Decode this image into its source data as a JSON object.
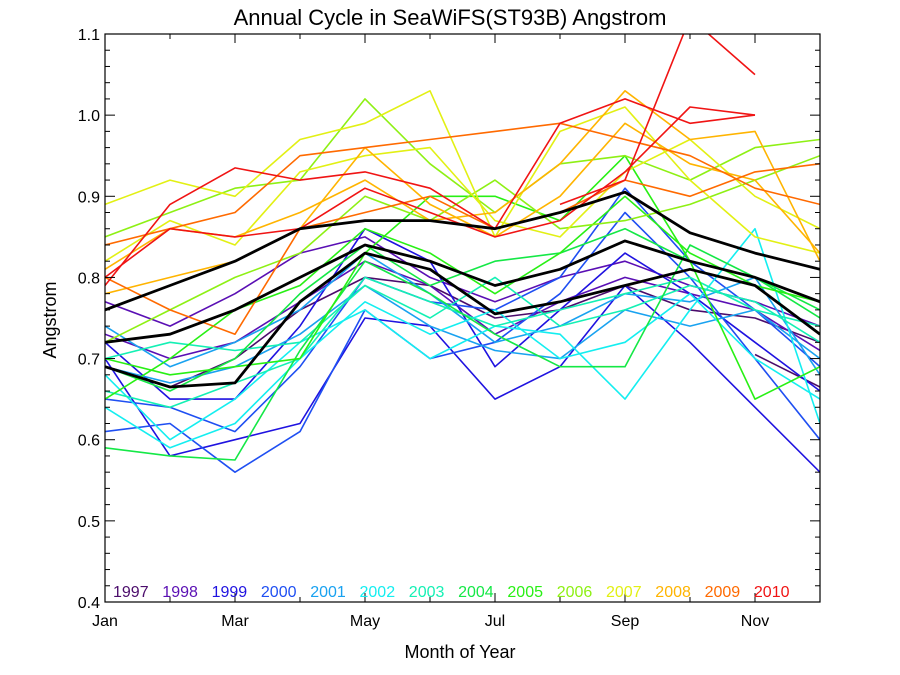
{
  "chart_data": {
    "type": "line",
    "title": "Annual Cycle in SeaWiFS(ST93B) Angstrom",
    "xlabel": "Month of Year",
    "ylabel": "Angstrom",
    "xlim": [
      1,
      12
    ],
    "ylim": [
      0.4,
      1.1
    ],
    "x_ticks": [
      {
        "x": 1,
        "label": "Jan"
      },
      {
        "x": 3,
        "label": "Mar"
      },
      {
        "x": 5,
        "label": "May"
      },
      {
        "x": 7,
        "label": "Jul"
      },
      {
        "x": 9,
        "label": "Sep"
      },
      {
        "x": 11,
        "label": "Nov"
      }
    ],
    "y_ticks": [
      {
        "y": 0.4,
        "label": "0.4"
      },
      {
        "y": 0.5,
        "label": "0.5"
      },
      {
        "y": 0.6,
        "label": "0.6"
      },
      {
        "y": 0.7,
        "label": "0.7"
      },
      {
        "y": 0.8,
        "label": "0.8"
      },
      {
        "y": 0.9,
        "label": "0.9"
      },
      {
        "y": 1.0,
        "label": "1.0"
      },
      {
        "y": 1.1,
        "label": "1.1"
      }
    ],
    "grid": false,
    "legend_position": "bottom",
    "legend": [
      {
        "label": "1997",
        "color": "#4b0c6b"
      },
      {
        "label": "1998",
        "color": "#5a0fb4"
      },
      {
        "label": "1999",
        "color": "#1f12e0"
      },
      {
        "label": "2000",
        "color": "#1f4ff2"
      },
      {
        "label": "2001",
        "color": "#19a2f0"
      },
      {
        "label": "2002",
        "color": "#14eef0"
      },
      {
        "label": "2003",
        "color": "#14f0b4"
      },
      {
        "label": "2004",
        "color": "#14e846"
      },
      {
        "label": "2005",
        "color": "#28f014"
      },
      {
        "label": "2006",
        "color": "#8ef014"
      },
      {
        "label": "2007",
        "color": "#e2f014"
      },
      {
        "label": "2008",
        "color": "#ffb400"
      },
      {
        "label": "2009",
        "color": "#ff6a00"
      },
      {
        "label": "2010",
        "color": "#f01414"
      }
    ],
    "series": [
      {
        "color": "#4b0c6b",
        "x": [
          11,
          12
        ],
        "y": [
          0.705,
          0.665
        ]
      },
      {
        "color": "#4b0c6b",
        "x": [
          1,
          2,
          3,
          4,
          5,
          6,
          7,
          8,
          9,
          10,
          11,
          12
        ],
        "y": [
          0.69,
          0.665,
          0.7,
          0.76,
          0.8,
          0.79,
          0.75,
          0.76,
          0.79,
          0.76,
          0.75,
          0.72
        ]
      },
      {
        "color": "#5a0fb4",
        "x": [
          1,
          2,
          3,
          4,
          5,
          6,
          7,
          8,
          9,
          10,
          11,
          12
        ],
        "y": [
          0.77,
          0.74,
          0.78,
          0.83,
          0.85,
          0.8,
          0.77,
          0.8,
          0.82,
          0.79,
          0.77,
          0.74
        ]
      },
      {
        "color": "#5a0fb4",
        "x": [
          1,
          2,
          3,
          4,
          5,
          6,
          7,
          8,
          9,
          10,
          11,
          12
        ],
        "y": [
          0.73,
          0.7,
          0.72,
          0.77,
          0.82,
          0.79,
          0.73,
          0.77,
          0.8,
          0.78,
          0.76,
          0.71
        ]
      },
      {
        "color": "#1f12e0",
        "x": [
          1,
          2,
          3,
          4,
          5,
          6,
          7,
          8,
          9,
          10,
          11,
          12
        ],
        "y": [
          0.7,
          0.58,
          0.6,
          0.62,
          0.75,
          0.74,
          0.65,
          0.69,
          0.79,
          0.72,
          0.64,
          0.56
        ]
      },
      {
        "color": "#1f12e0",
        "x": [
          1,
          2,
          3,
          4,
          5,
          6,
          7,
          8,
          9,
          10,
          11,
          12
        ],
        "y": [
          0.72,
          0.65,
          0.65,
          0.74,
          0.86,
          0.82,
          0.69,
          0.76,
          0.83,
          0.78,
          0.72,
          0.66
        ]
      },
      {
        "color": "#1f4ff2",
        "x": [
          1,
          2,
          3,
          4,
          5,
          6,
          7,
          8,
          9,
          10,
          11,
          12
        ],
        "y": [
          0.61,
          0.62,
          0.56,
          0.61,
          0.76,
          0.7,
          0.72,
          0.78,
          0.88,
          0.8,
          0.7,
          0.6
        ]
      },
      {
        "color": "#1f4ff2",
        "x": [
          1,
          2,
          3,
          4,
          5,
          6,
          7,
          8,
          9,
          10,
          11,
          12
        ],
        "y": [
          0.65,
          0.64,
          0.61,
          0.69,
          0.8,
          0.77,
          0.76,
          0.8,
          0.91,
          0.82,
          0.76,
          0.69
        ]
      },
      {
        "color": "#19a2f0",
        "x": [
          1,
          2,
          3,
          4,
          5,
          6,
          7,
          8,
          9,
          10,
          11,
          12
        ],
        "y": [
          0.74,
          0.69,
          0.72,
          0.76,
          0.83,
          0.78,
          0.72,
          0.74,
          0.78,
          0.77,
          0.8,
          0.68
        ]
      },
      {
        "color": "#19a2f0",
        "x": [
          1,
          2,
          3,
          4,
          5,
          6,
          7,
          8,
          9,
          10,
          11,
          12
        ],
        "y": [
          0.69,
          0.67,
          0.69,
          0.73,
          0.79,
          0.74,
          0.71,
          0.7,
          0.76,
          0.74,
          0.76,
          0.7
        ]
      },
      {
        "color": "#14eef0",
        "x": [
          1,
          2,
          3,
          4,
          5,
          6,
          7,
          8,
          9,
          10,
          11,
          12
        ],
        "y": [
          0.68,
          0.6,
          0.65,
          0.72,
          0.76,
          0.7,
          0.74,
          0.73,
          0.65,
          0.76,
          0.86,
          0.62
        ]
      },
      {
        "color": "#14eef0",
        "x": [
          1,
          2,
          3,
          4,
          5,
          6,
          7,
          8,
          9,
          10,
          11,
          12
        ],
        "y": [
          0.64,
          0.59,
          0.62,
          0.7,
          0.77,
          0.73,
          0.76,
          0.7,
          0.72,
          0.78,
          0.7,
          0.65
        ]
      },
      {
        "color": "#14f0b4",
        "x": [
          1,
          2,
          3,
          4,
          5,
          6,
          7,
          8,
          9,
          10,
          11,
          12
        ],
        "y": [
          0.7,
          0.72,
          0.71,
          0.72,
          0.79,
          0.75,
          0.8,
          0.74,
          0.76,
          0.79,
          0.77,
          0.72
        ]
      },
      {
        "color": "#14f0b4",
        "x": [
          1,
          2,
          3,
          4,
          5,
          6,
          7,
          8,
          9,
          10,
          11,
          12
        ],
        "y": [
          0.66,
          0.64,
          0.67,
          0.7,
          0.8,
          0.77,
          0.74,
          0.76,
          0.78,
          0.8,
          0.76,
          0.74
        ]
      },
      {
        "color": "#14e846",
        "x": [
          1,
          2,
          3,
          4,
          5,
          6,
          7,
          8,
          9,
          10,
          11,
          12
        ],
        "y": [
          0.59,
          0.58,
          0.575,
          0.71,
          0.82,
          0.78,
          0.73,
          0.69,
          0.69,
          0.84,
          0.8,
          0.76
        ]
      },
      {
        "color": "#14e846",
        "x": [
          1,
          2,
          3,
          4,
          5,
          6,
          7,
          8,
          9,
          10,
          11,
          12
        ],
        "y": [
          0.69,
          0.66,
          0.7,
          0.78,
          0.84,
          0.79,
          0.82,
          0.83,
          0.86,
          0.82,
          0.8,
          0.75
        ]
      },
      {
        "color": "#28f014",
        "x": [
          1,
          2,
          3,
          4,
          5,
          6,
          7,
          8,
          9,
          10,
          11,
          12
        ],
        "y": [
          0.7,
          0.68,
          0.69,
          0.7,
          0.83,
          0.9,
          0.9,
          0.87,
          0.95,
          0.82,
          0.65,
          0.69
        ]
      },
      {
        "color": "#28f014",
        "x": [
          1,
          2,
          3,
          4,
          5,
          6,
          7,
          8,
          9,
          10,
          11,
          12
        ],
        "y": [
          0.65,
          0.7,
          0.76,
          0.79,
          0.86,
          0.83,
          0.78,
          0.83,
          0.9,
          0.83,
          0.79,
          0.77
        ]
      },
      {
        "color": "#8ef014",
        "x": [
          1,
          2,
          3,
          4,
          5,
          6,
          7,
          8,
          9,
          10,
          11,
          12
        ],
        "y": [
          0.85,
          0.88,
          0.91,
          0.92,
          1.02,
          0.94,
          0.88,
          0.94,
          0.95,
          0.92,
          0.96,
          0.97
        ]
      },
      {
        "color": "#8ef014",
        "x": [
          1,
          2,
          3,
          4,
          5,
          6,
          7,
          8,
          9,
          10,
          11,
          12
        ],
        "y": [
          0.72,
          0.76,
          0.8,
          0.83,
          0.9,
          0.87,
          0.92,
          0.86,
          0.87,
          0.89,
          0.92,
          0.95
        ]
      },
      {
        "color": "#e2f014",
        "x": [
          1,
          2,
          3,
          4,
          5,
          6,
          7,
          8,
          9,
          10,
          11,
          12
        ],
        "y": [
          0.89,
          0.92,
          0.9,
          0.97,
          0.99,
          1.03,
          0.85,
          0.98,
          1.01,
          0.92,
          0.85,
          0.83
        ]
      },
      {
        "color": "#e2f014",
        "x": [
          1,
          2,
          3,
          4,
          5,
          6,
          7,
          8,
          9,
          10,
          11,
          12
        ],
        "y": [
          0.82,
          0.87,
          0.84,
          0.93,
          0.95,
          0.96,
          0.87,
          0.85,
          0.93,
          0.97,
          0.9,
          0.86
        ]
      },
      {
        "color": "#ffb400",
        "x": [
          1,
          2,
          3,
          4,
          5,
          6,
          7,
          8,
          9,
          10,
          11,
          12
        ],
        "y": [
          0.81,
          0.86,
          0.85,
          0.88,
          0.92,
          0.87,
          0.88,
          0.94,
          1.03,
          0.97,
          0.98,
          0.82
        ]
      },
      {
        "color": "#ffb400",
        "x": [
          1,
          2,
          3,
          4,
          5,
          6,
          7,
          8,
          9,
          10,
          11,
          12
        ],
        "y": [
          0.78,
          0.8,
          0.82,
          0.86,
          0.96,
          0.89,
          0.85,
          0.9,
          0.99,
          0.94,
          0.92,
          0.83
        ]
      },
      {
        "color": "#ff6a00",
        "x": [
          1,
          2,
          3,
          4,
          5,
          6,
          7,
          8,
          9,
          10,
          11,
          12
        ],
        "y": [
          0.84,
          0.86,
          0.88,
          0.95,
          0.96,
          0.97,
          0.98,
          0.99,
          0.97,
          0.95,
          0.91,
          0.89
        ]
      },
      {
        "color": "#ff6a00",
        "x": [
          1,
          2,
          3,
          4,
          5,
          6,
          7,
          8,
          9,
          10,
          11,
          12
        ],
        "y": [
          0.8,
          0.76,
          0.73,
          0.86,
          0.88,
          0.9,
          0.86,
          0.88,
          0.92,
          0.9,
          0.93,
          0.94
        ]
      },
      {
        "color": "#f01414",
        "x": [
          1,
          2,
          3,
          4,
          5,
          6,
          7,
          8,
          9,
          10,
          11
        ],
        "y": [
          0.79,
          0.89,
          0.935,
          0.92,
          0.93,
          0.91,
          0.86,
          0.99,
          1.02,
          0.99,
          1.0
        ]
      },
      {
        "color": "#f01414",
        "x": [
          1,
          2,
          3,
          4,
          5,
          6,
          7,
          8,
          9,
          10,
          11
        ],
        "y": [
          0.8,
          0.86,
          0.85,
          0.86,
          0.91,
          0.88,
          0.85,
          0.87,
          0.93,
          1.01,
          1.0
        ]
      },
      {
        "color": "#f01414",
        "x": [
          8,
          9,
          10,
          11
        ],
        "y": [
          0.89,
          0.92,
          1.12,
          1.05
        ]
      },
      {
        "color": "#000000",
        "width": 2.8,
        "x": [
          1,
          2,
          3,
          4,
          5,
          6,
          7,
          8,
          9,
          10,
          11,
          12
        ],
        "y": [
          0.76,
          0.79,
          0.82,
          0.86,
          0.87,
          0.87,
          0.86,
          0.88,
          0.905,
          0.855,
          0.83,
          0.81
        ]
      },
      {
        "color": "#000000",
        "width": 2.8,
        "x": [
          1,
          2,
          3,
          4,
          5,
          6,
          7,
          8,
          9,
          10,
          11,
          12
        ],
        "y": [
          0.72,
          0.73,
          0.76,
          0.8,
          0.84,
          0.82,
          0.79,
          0.81,
          0.845,
          0.82,
          0.8,
          0.77
        ]
      },
      {
        "color": "#000000",
        "width": 2.8,
        "x": [
          1,
          2,
          3,
          4,
          5,
          6,
          7,
          8,
          9,
          10,
          11,
          12
        ],
        "y": [
          0.69,
          0.665,
          0.67,
          0.77,
          0.83,
          0.81,
          0.755,
          0.77,
          0.79,
          0.81,
          0.79,
          0.73
        ]
      }
    ]
  }
}
